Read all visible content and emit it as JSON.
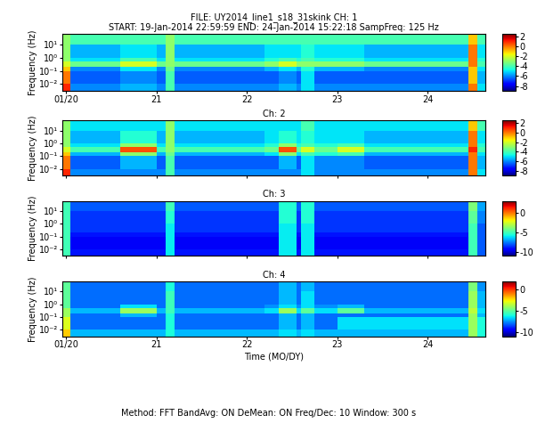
{
  "footer": "Method: FFT BandAvg: ON DeMean: ON Freq/Dec: 10 Window: 300 s",
  "chart_data": [
    {
      "type": "heatmap",
      "title": [
        "FILE: UY2014_line1_s18_31skink CH: 1",
        "START: 19-Jan-2014 22:59:59 END: 24-Jan-2014 15:22:18 SampFreq: 125 Hz"
      ],
      "ylabel": "Frequency (Hz)",
      "log": "y",
      "xlim": [
        19.96,
        24.64
      ],
      "xticks": [
        {
          "value": 20,
          "label": "01/20"
        },
        21,
        22,
        23,
        24
      ],
      "ylim": [
        0.003,
        62.5
      ],
      "yticks": [
        {
          "value": 0.01,
          "label": "10⁻²"
        },
        {
          "value": 0.1,
          "label": "10⁻¹"
        },
        {
          "value": 1,
          "label": "10⁰"
        },
        {
          "value": 10,
          "label": "10¹"
        }
      ],
      "x_edges": [
        19.96,
        20.05,
        20.5,
        20.6,
        21.0,
        21.1,
        21.2,
        22.2,
        22.35,
        22.55,
        22.6,
        22.75,
        23.0,
        23.3,
        24.45,
        24.55,
        24.64
      ],
      "y_edges": [
        0.003,
        0.01,
        0.1,
        0.2,
        0.5,
        1,
        10,
        62.5
      ],
      "cells": [
        [
          1,
          -6,
          -6,
          -5.5,
          -6,
          -4,
          -6,
          -6,
          -5.5,
          -6,
          -5,
          -6,
          -6,
          -6,
          0,
          -5
        ],
        [
          0,
          -6.5,
          -6.5,
          -6,
          -6.5,
          -4,
          -6.5,
          -6.5,
          -6,
          -6.5,
          -5,
          -6.5,
          -6.5,
          -6.5,
          -1,
          -5.5
        ],
        [
          -1,
          -6,
          -6,
          -5,
          -6,
          -3.5,
          -6,
          -5.5,
          -5,
          -5.5,
          -4.5,
          -5.5,
          -5.5,
          -6,
          -1,
          -5
        ],
        [
          -2,
          -3.5,
          -3.5,
          -2,
          -3.5,
          -3,
          -3.5,
          -3,
          -2,
          -3,
          -3,
          -3,
          -3,
          -3.5,
          0,
          -4
        ],
        [
          -3,
          -5,
          -5,
          -4,
          -5,
          -3,
          -5,
          -4.5,
          -4,
          -4.5,
          -4,
          -4.5,
          -4.5,
          -5,
          0,
          -4.5
        ],
        [
          -3,
          -5.5,
          -5.5,
          -5,
          -5.5,
          -3,
          -5.5,
          -5,
          -5,
          -5,
          -4.5,
          -5,
          -5,
          -5.5,
          0,
          -5
        ],
        [
          -3,
          -4,
          -4,
          -4,
          -4,
          -3,
          -4,
          -4,
          -4,
          -4,
          -4,
          -4,
          -4,
          -4,
          -1,
          -4
        ]
      ],
      "colorbar": {
        "range": [
          -9,
          2.5
        ],
        "ticks": [
          -8,
          -6,
          -4,
          -2,
          0,
          2
        ]
      }
    },
    {
      "type": "heatmap",
      "title": [
        "Ch: 2"
      ],
      "ylabel": "Frequency (Hz)",
      "log": "y",
      "tick_labels": "y",
      "xlim": [
        19.96,
        24.64
      ],
      "xticks": [
        20,
        21,
        22,
        23,
        24
      ],
      "ylim": [
        0.003,
        62.5
      ],
      "yticks": [
        {
          "value": 0.01,
          "label": "10⁻²"
        },
        {
          "value": 0.1,
          "label": "10⁻¹"
        },
        {
          "value": 1,
          "label": "10⁰"
        },
        {
          "value": 10,
          "label": "10¹"
        }
      ],
      "x_edges": [
        19.96,
        20.05,
        20.5,
        20.6,
        21.0,
        21.1,
        21.2,
        22.2,
        22.35,
        22.55,
        22.6,
        22.75,
        23.0,
        23.3,
        24.45,
        24.55,
        24.64
      ],
      "y_edges": [
        0.003,
        0.01,
        0.1,
        0.2,
        0.5,
        1,
        10,
        62.5
      ],
      "cells": [
        [
          1,
          -6,
          -6,
          -6,
          -6,
          -4,
          -6,
          -6,
          -6,
          -6,
          -5,
          -6,
          -6,
          -6,
          0,
          -5
        ],
        [
          0,
          -6.5,
          -6.5,
          -5.5,
          -6.5,
          -4,
          -6.5,
          -6.5,
          -5.5,
          -6.5,
          -5,
          -6,
          -6,
          -6.5,
          0,
          -5.5
        ],
        [
          -1,
          -5.5,
          -5.5,
          -3,
          -5.5,
          -3.5,
          -5.5,
          -5,
          -3,
          -5,
          -4,
          -4.5,
          -4,
          -5.5,
          0,
          -5
        ],
        [
          -2,
          -4,
          -4,
          0.5,
          -4,
          -3,
          -4,
          -3.5,
          0.5,
          -3.5,
          -2,
          -3.5,
          -2,
          -4,
          1,
          -4
        ],
        [
          -3,
          -5,
          -5,
          -3,
          -5,
          -3,
          -5,
          -4.5,
          -3,
          -4.5,
          -4,
          -4.5,
          -4,
          -5,
          0,
          -4.5
        ],
        [
          -3,
          -5.5,
          -5.5,
          -4.5,
          -5.5,
          -3,
          -5.5,
          -5,
          -4.5,
          -5,
          -4.5,
          -5,
          -5,
          -5.5,
          0,
          -5
        ],
        [
          -3,
          -5,
          -5,
          -5,
          -5,
          -3,
          -5,
          -5,
          -5,
          -5,
          -4,
          -5,
          -5,
          -5,
          -1,
          -4
        ]
      ],
      "colorbar": {
        "range": [
          -9,
          2.5
        ],
        "ticks": [
          -8,
          -6,
          -4,
          -2,
          0,
          2
        ]
      }
    },
    {
      "type": "heatmap",
      "title": [
        "Ch: 3"
      ],
      "ylabel": "Frequency (Hz)",
      "log": "y",
      "tick_labels": "y",
      "xlim": [
        19.96,
        24.64
      ],
      "xticks": [
        20,
        21,
        22,
        23,
        24
      ],
      "ylim": [
        0.003,
        62.5
      ],
      "yticks": [
        {
          "value": 0.01,
          "label": "10⁻²"
        },
        {
          "value": 0.1,
          "label": "10⁻¹"
        },
        {
          "value": 1,
          "label": "10⁰"
        },
        {
          "value": 10,
          "label": "10¹"
        }
      ],
      "x_edges": [
        19.96,
        20.05,
        20.5,
        20.6,
        21.0,
        21.1,
        21.2,
        22.2,
        22.35,
        22.55,
        22.6,
        22.75,
        23.0,
        23.3,
        24.45,
        24.55,
        24.64
      ],
      "y_edges": [
        0.003,
        0.01,
        0.1,
        0.2,
        0.5,
        1,
        10,
        62.5
      ],
      "cells": [
        [
          -5,
          -9,
          -9,
          -9,
          -9,
          -6,
          -9,
          -9,
          -6,
          -9,
          -6,
          -9,
          -9,
          -9,
          -5,
          -8
        ],
        [
          -5,
          -9.5,
          -9.5,
          -9.5,
          -9.5,
          -6,
          -9.5,
          -9.5,
          -6,
          -9.5,
          -6,
          -9.5,
          -9.5,
          -9.5,
          -5,
          -8
        ],
        [
          -5,
          -9,
          -9,
          -9,
          -9,
          -6,
          -9,
          -9,
          -6,
          -9,
          -6,
          -9,
          -9,
          -9,
          -5,
          -8
        ],
        [
          -5,
          -8.5,
          -8.5,
          -8.5,
          -8.5,
          -6,
          -8.5,
          -8.5,
          -6,
          -8.5,
          -6,
          -8.5,
          -8.5,
          -8.5,
          -5,
          -8
        ],
        [
          -5,
          -8.5,
          -8.5,
          -8.5,
          -8.5,
          -6,
          -8.5,
          -8.5,
          -6,
          -8.5,
          -6,
          -8.5,
          -8.5,
          -8.5,
          -5,
          -8
        ],
        [
          -5,
          -8.5,
          -8.5,
          -8.5,
          -8.5,
          -5.5,
          -8.5,
          -8.5,
          -5.5,
          -8.5,
          -5.5,
          -8.5,
          -8.5,
          -8.5,
          -4.5,
          -7.5
        ],
        [
          -5,
          -8,
          -8,
          -8,
          -8,
          -5,
          -8,
          -8,
          -5.5,
          -8,
          -5.5,
          -8,
          -8,
          -8,
          -4,
          -7
        ]
      ],
      "colorbar": {
        "range": [
          -11,
          3
        ],
        "ticks": [
          -10,
          -5,
          0
        ]
      }
    },
    {
      "type": "heatmap",
      "title": [
        "Ch: 4"
      ],
      "ylabel": "Frequency (Hz)",
      "xlabel": "Time (MO/DY)",
      "log": "y",
      "xlim": [
        19.96,
        24.64
      ],
      "xticks": [
        {
          "value": 20,
          "label": "01/20"
        },
        21,
        22,
        23,
        24
      ],
      "ylim": [
        0.003,
        62.5
      ],
      "yticks": [
        {
          "value": 0.01,
          "label": "10⁻²"
        },
        {
          "value": 0.1,
          "label": "10⁻¹"
        },
        {
          "value": 1,
          "label": "10⁰"
        },
        {
          "value": 10,
          "label": "10¹"
        }
      ],
      "x_edges": [
        19.96,
        20.05,
        20.5,
        20.6,
        21.0,
        21.1,
        21.2,
        22.2,
        22.35,
        22.55,
        22.6,
        22.75,
        23.0,
        23.3,
        24.45,
        24.55,
        24.64
      ],
      "y_edges": [
        0.003,
        0.01,
        0.1,
        0.2,
        0.5,
        1,
        10,
        62.5
      ],
      "cells": [
        [
          -2,
          -7,
          -7,
          -7,
          -7,
          -6,
          -7,
          -7,
          -6.5,
          -7,
          -6.5,
          -7,
          -7,
          -7,
          -4,
          -6
        ],
        [
          -3,
          -8,
          -8,
          -8,
          -8,
          -6,
          -8,
          -8,
          -7,
          -8,
          -7,
          -8,
          -6.5,
          -6.5,
          -4,
          -6
        ],
        [
          -4,
          -8,
          -8,
          -7,
          -8,
          -6,
          -8,
          -8,
          -7,
          -8,
          -7,
          -8,
          -8,
          -8,
          -4,
          -7
        ],
        [
          -4,
          -7,
          -7,
          -4,
          -7,
          -5.5,
          -7,
          -6.5,
          -4,
          -6.5,
          -5,
          -6.5,
          -5,
          -7,
          -3.5,
          -6.5
        ],
        [
          -5,
          -8,
          -8,
          -6.5,
          -8,
          -5.5,
          -8,
          -7.5,
          -6.5,
          -7.5,
          -6.5,
          -7.5,
          -7,
          -8,
          -4,
          -7
        ],
        [
          -5,
          -8,
          -8,
          -8,
          -8,
          -5.5,
          -8,
          -8,
          -7,
          -8,
          -6.5,
          -8,
          -8,
          -8,
          -4,
          -7
        ],
        [
          -5,
          -8,
          -8,
          -8,
          -8,
          -6,
          -8,
          -8,
          -7,
          -8,
          -7,
          -8,
          -8,
          -8,
          -4.5,
          -7.5
        ]
      ],
      "colorbar": {
        "range": [
          -11,
          2
        ],
        "ticks": [
          -10,
          -5,
          0
        ]
      }
    }
  ]
}
